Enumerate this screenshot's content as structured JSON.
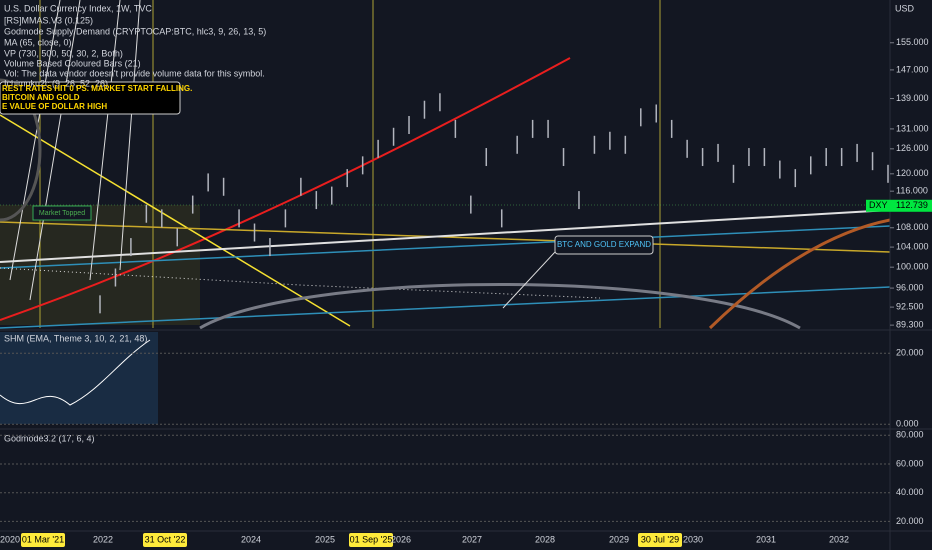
{
  "legend": [
    "U.S. Dollar Currency Index, 1W, TVC",
    "[RS]MMAS.V3 (0.125)",
    "Godmode Supply/Demand (CRYPTOCAP:BTC, hlc3, 9, 26, 13, 5)",
    "MA (65, close, 0)",
    "VP (730, 500, 50, 30, 2, Both)",
    "Volume Based Coloured Bars (21)",
    "Vol: The data vendor doesn't provide volume data for this symbol.",
    "Ichimoku2c (9, 26, 52, 26)"
  ],
  "annotations": {
    "rates": [
      "REST RATES HIT 0 PS. MARKET START FALLING.",
      "BITCOIN AND GOLD",
      "E VALUE OF DOLLAR HIGH"
    ],
    "topped": "Market Topped",
    "expand": "BTC AND GOLD EXPAND"
  },
  "price_axis": {
    "unit": "USD",
    "log": true,
    "ylim": [
      88.8,
      168.5
    ],
    "yticks": [
      {
        "value": 155,
        "label": "155.000"
      },
      {
        "value": 147,
        "label": "147.000"
      },
      {
        "value": 139,
        "label": "139.000"
      },
      {
        "value": 131,
        "label": "131.000"
      },
      {
        "value": 126,
        "label": "126.000"
      },
      {
        "value": 120,
        "label": "120.000"
      },
      {
        "value": 116,
        "label": "116.000"
      },
      {
        "value": 108,
        "label": "108.000"
      },
      {
        "value": 104,
        "label": "104.000"
      },
      {
        "value": 100,
        "label": "100.000"
      },
      {
        "value": 96,
        "label": "96.000"
      },
      {
        "value": 92.5,
        "label": "92.500"
      },
      {
        "value": 89.3,
        "label": "89.300"
      }
    ],
    "last": {
      "symbol": "DXY",
      "value": 112.739,
      "label": "112.739"
    }
  },
  "price": {
    "name": "DXY",
    "values": [
      93,
      98,
      104,
      111,
      110,
      106,
      113,
      118,
      117,
      110,
      107,
      104,
      110,
      117,
      114,
      115,
      119,
      122,
      126,
      129,
      132,
      136,
      138,
      131,
      113,
      124,
      110,
      127,
      131,
      131,
      124,
      114,
      127,
      128,
      127,
      134,
      135,
      131,
      126,
      124,
      125,
      120,
      124,
      124,
      121,
      119,
      122,
      124,
      124,
      125,
      123,
      120
    ]
  },
  "shm": {
    "title": "SHM (EMA, Theme 3, 10, 2, 21, 48)",
    "ylim": [
      -0.5,
      26
    ],
    "yticks": [
      {
        "value": 20,
        "label": "20.000"
      },
      {
        "value": 0,
        "label": "0.000"
      }
    ]
  },
  "godmode": {
    "title": "Godmode3.2 (17, 6, 4)",
    "ylim": [
      14,
      83
    ],
    "yticks": [
      {
        "value": 80,
        "label": "80.000"
      },
      {
        "value": 60,
        "label": "60.000"
      },
      {
        "value": 40,
        "label": "40.000"
      },
      {
        "value": 20,
        "label": "20.000"
      }
    ]
  },
  "time_axis": [
    "2020",
    "01 Mar '21",
    "2022",
    "31 Oct '22",
    "2024",
    "2025",
    "01 Sep '25",
    "2026",
    "2027",
    "2028",
    "2029",
    "30 Jul '29",
    "2030",
    "2031",
    "2032"
  ]
}
